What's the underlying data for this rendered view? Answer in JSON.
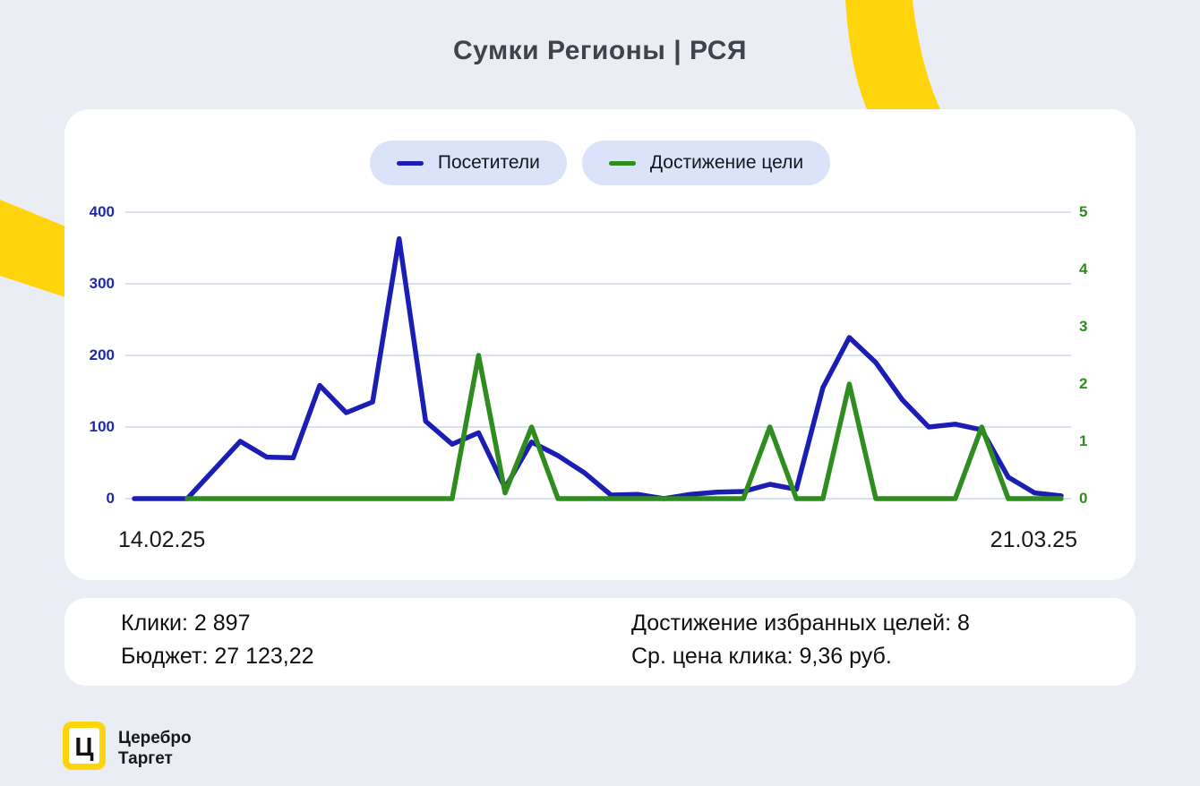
{
  "title": "Сумки Регионы | РСЯ",
  "legend": {
    "items": [
      {
        "label": "Посетители",
        "color": "#1b1db4"
      },
      {
        "label": "Достижение цели",
        "color": "#2f8c1e"
      }
    ]
  },
  "chart_data": {
    "type": "line",
    "title": "Сумки Регионы | РСЯ",
    "x_axis": {
      "start_label": "14.02.25",
      "end_label": "21.03.25",
      "points": 36,
      "unit": "day"
    },
    "left_axis": {
      "ticks": [
        400,
        300,
        200,
        100,
        0
      ],
      "range": [
        0,
        400
      ],
      "color": "#1d2aad"
    },
    "right_axis": {
      "ticks": [
        5,
        4,
        3,
        2,
        1,
        0
      ],
      "range": [
        0,
        5
      ],
      "color": "#2f8c1e"
    },
    "grid": true,
    "legend_position": "top",
    "series": [
      {
        "name": "Посетители",
        "axis": "left",
        "color": "#1b1db4",
        "values": [
          0,
          0,
          0,
          40,
          80,
          58,
          57,
          158,
          120,
          135,
          363,
          108,
          76,
          92,
          15,
          79,
          60,
          36,
          5,
          6,
          0,
          6,
          9,
          10,
          20,
          13,
          155,
          225,
          190,
          138,
          100,
          104,
          96,
          30,
          8,
          4
        ]
      },
      {
        "name": "Достижение цели",
        "axis": "right",
        "color": "#2f8c1e",
        "values": [
          null,
          null,
          0,
          0,
          0,
          0,
          0,
          0,
          0,
          0,
          0,
          0,
          0,
          2.5,
          0.1,
          1.25,
          0,
          0,
          0,
          0,
          0,
          0,
          0,
          0,
          1.25,
          0,
          0,
          2,
          0,
          0,
          0,
          0,
          1.25,
          0,
          0,
          0
        ]
      }
    ]
  },
  "stats": {
    "left": [
      {
        "text": "Клики: 2 897"
      },
      {
        "text": "Бюджет: 27 123,22"
      }
    ],
    "right": [
      {
        "text": "Достижение избранных целей: 8"
      },
      {
        "text": "Ср. цена клика: 9,36 руб."
      }
    ]
  },
  "logo": {
    "symbol": "Ц",
    "name_line1": "Церебро",
    "name_line2": "Таргет"
  },
  "colors": {
    "background": "#eaedf3",
    "card": "#ffffff",
    "accent_yellow": "#ffd40a",
    "grid": "#d8e0f4",
    "legend_pill": "#dbe3fa"
  }
}
